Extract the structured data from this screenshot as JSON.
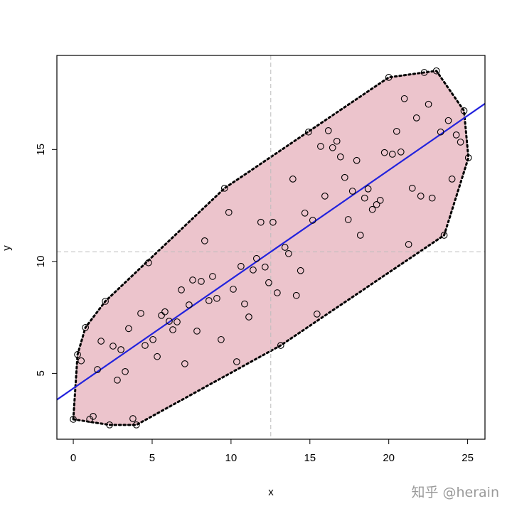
{
  "chart_data": {
    "type": "scatter",
    "title": "",
    "xlabel": "x",
    "ylabel": "y",
    "xlim": [
      -1.04,
      26.1
    ],
    "ylim": [
      2.06,
      19.2
    ],
    "xticks": [
      0,
      5,
      10,
      15,
      20,
      25
    ],
    "yticks": [
      5,
      10,
      15
    ],
    "grid": false,
    "overlays": [
      "convex hull (dotted outline, pink fill)",
      "least-squares regression line",
      "dashed lines at mean x and mean y"
    ],
    "colors": {
      "hull_fill": "#ecc4cc",
      "regression_line": "#2222dd",
      "points": "#000000",
      "mean_lines": "#bbbbbb"
    },
    "points": [
      [
        0,
        2.95
      ],
      [
        0.27,
        5.84
      ],
      [
        0.5,
        5.56
      ],
      [
        0.77,
        7.05
      ],
      [
        1.04,
        2.95
      ],
      [
        1.26,
        3.08
      ],
      [
        1.53,
        5.17
      ],
      [
        1.76,
        6.44
      ],
      [
        2.03,
        8.22
      ],
      [
        2.3,
        2.7
      ],
      [
        2.52,
        6.22
      ],
      [
        2.79,
        4.7
      ],
      [
        3.02,
        6.06
      ],
      [
        3.29,
        5.08
      ],
      [
        3.51,
        7.0
      ],
      [
        3.78,
        2.98
      ],
      [
        4.0,
        2.7
      ],
      [
        4.28,
        7.68
      ],
      [
        4.55,
        6.25
      ],
      [
        4.77,
        9.94
      ],
      [
        5.05,
        6.51
      ],
      [
        5.32,
        5.75
      ],
      [
        5.59,
        7.59
      ],
      [
        5.81,
        7.75
      ],
      [
        6.08,
        7.33
      ],
      [
        6.31,
        6.95
      ],
      [
        6.58,
        7.3
      ],
      [
        6.85,
        8.73
      ],
      [
        7.07,
        5.43
      ],
      [
        7.34,
        8.06
      ],
      [
        7.57,
        9.17
      ],
      [
        7.84,
        6.89
      ],
      [
        8.11,
        9.11
      ],
      [
        8.33,
        10.92
      ],
      [
        8.6,
        8.25
      ],
      [
        8.83,
        9.33
      ],
      [
        9.1,
        8.35
      ],
      [
        9.37,
        6.51
      ],
      [
        9.59,
        13.27
      ],
      [
        9.86,
        12.19
      ],
      [
        10.14,
        8.76
      ],
      [
        10.36,
        5.52
      ],
      [
        10.63,
        9.78
      ],
      [
        10.86,
        8.1
      ],
      [
        11.13,
        7.52
      ],
      [
        11.4,
        9.62
      ],
      [
        11.62,
        10.13
      ],
      [
        11.89,
        11.75
      ],
      [
        12.16,
        9.75
      ],
      [
        12.39,
        9.05
      ],
      [
        12.66,
        11.75
      ],
      [
        12.93,
        8.6
      ],
      [
        13.15,
        6.25
      ],
      [
        13.42,
        10.63
      ],
      [
        13.65,
        10.35
      ],
      [
        13.92,
        13.68
      ],
      [
        14.14,
        8.48
      ],
      [
        14.41,
        9.59
      ],
      [
        14.68,
        12.16
      ],
      [
        14.91,
        15.78
      ],
      [
        15.18,
        11.84
      ],
      [
        15.45,
        7.65
      ],
      [
        15.68,
        15.14
      ],
      [
        15.95,
        12.92
      ],
      [
        16.17,
        15.84
      ],
      [
        16.44,
        15.08
      ],
      [
        16.71,
        15.37
      ],
      [
        16.94,
        14.67
      ],
      [
        17.21,
        13.75
      ],
      [
        17.43,
        11.87
      ],
      [
        17.7,
        13.14
      ],
      [
        17.97,
        14.51
      ],
      [
        18.2,
        11.17
      ],
      [
        18.47,
        12.83
      ],
      [
        18.69,
        13.24
      ],
      [
        18.96,
        12.32
      ],
      [
        19.23,
        12.54
      ],
      [
        19.46,
        12.73
      ],
      [
        19.73,
        14.86
      ],
      [
        20.0,
        18.22
      ],
      [
        20.23,
        14.79
      ],
      [
        20.5,
        15.81
      ],
      [
        20.77,
        14.89
      ],
      [
        20.99,
        17.27
      ],
      [
        21.26,
        10.76
      ],
      [
        21.49,
        13.27
      ],
      [
        21.76,
        16.41
      ],
      [
        22.03,
        12.92
      ],
      [
        22.25,
        18.44
      ],
      [
        22.52,
        17.02
      ],
      [
        22.75,
        12.83
      ],
      [
        23.02,
        18.51
      ],
      [
        23.29,
        15.78
      ],
      [
        23.51,
        11.17
      ],
      [
        23.78,
        16.29
      ],
      [
        24.01,
        13.68
      ],
      [
        24.28,
        15.65
      ],
      [
        24.55,
        15.33
      ],
      [
        24.77,
        16.73
      ],
      [
        25.05,
        14.63
      ]
    ]
  },
  "watermark": "知乎 @herain"
}
